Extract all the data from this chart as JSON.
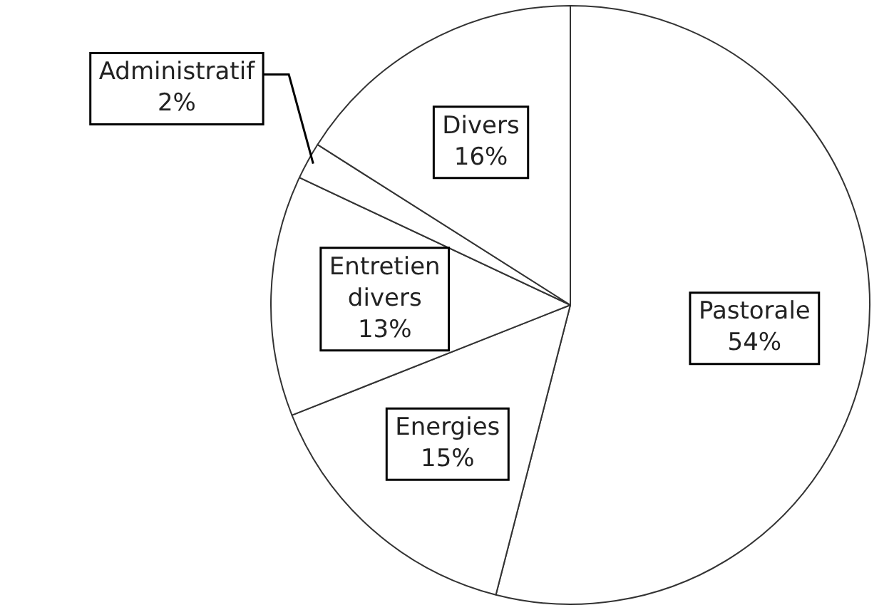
{
  "chart_data": {
    "type": "pie",
    "categories": [
      "Pastorale",
      "Energies",
      "Entretien divers",
      "Administratif",
      "Divers"
    ],
    "values": [
      54,
      15,
      13,
      2,
      16
    ],
    "value_labels": [
      "54%",
      "15%",
      "13%",
      "2%",
      "16%"
    ],
    "colors": [
      "#ffffff",
      "#ffffff",
      "#ffffff",
      "#ffffff",
      "#ffffff"
    ],
    "legend": false
  }
}
